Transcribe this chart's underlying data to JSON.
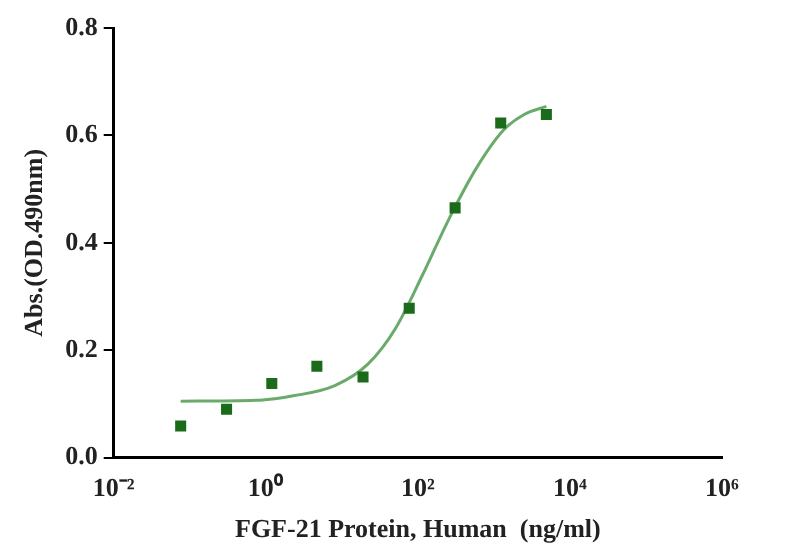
{
  "chart_data": {
    "type": "scatter",
    "xlabel": "FGF-21 Protein, Human  (ng/ml)",
    "ylabel": "Abs.(OD.490nm)",
    "log": "x",
    "grid": false,
    "legend": false,
    "marker": "square",
    "xlim": [
      0.01,
      1000000
    ],
    "xticks": [
      {
        "value": 0.01,
        "label": "10⁻²"
      },
      {
        "value": 1,
        "label": "10⁰"
      },
      {
        "value": 100,
        "label": "10²"
      },
      {
        "value": 10000,
        "label": "10⁴"
      },
      {
        "value": 1000000,
        "label": "10⁶"
      }
    ],
    "ylim": [
      0,
      0.8
    ],
    "yticks": [
      {
        "value": 0,
        "label": "0.0"
      },
      {
        "value": 0.2,
        "label": "0.2"
      },
      {
        "value": 0.4,
        "label": "0.4"
      },
      {
        "value": 0.6,
        "label": "0.6"
      },
      {
        "value": 0.8,
        "label": "0.8"
      }
    ],
    "x": [
      0.076,
      0.305,
      1.2,
      4.7,
      19,
      77,
      309,
      1230,
      4900
    ],
    "series": [
      {
        "color": "#1a6b1a",
        "values": [
          0.059,
          0.09,
          0.138,
          0.17,
          0.15,
          0.278,
          0.465,
          0.623,
          0.639
        ]
      },
      {
        "type": "line",
        "color": "#6aaa6a",
        "marker": "none",
        "x": [
          0.076,
          0.85,
          2.3,
          8.1,
          22,
          51,
          116,
          262,
          594,
          1340,
          2500,
          4900
        ],
        "values": [
          0.105,
          0.107,
          0.115,
          0.134,
          0.174,
          0.241,
          0.341,
          0.447,
          0.54,
          0.61,
          0.639,
          0.654
        ]
      }
    ]
  }
}
